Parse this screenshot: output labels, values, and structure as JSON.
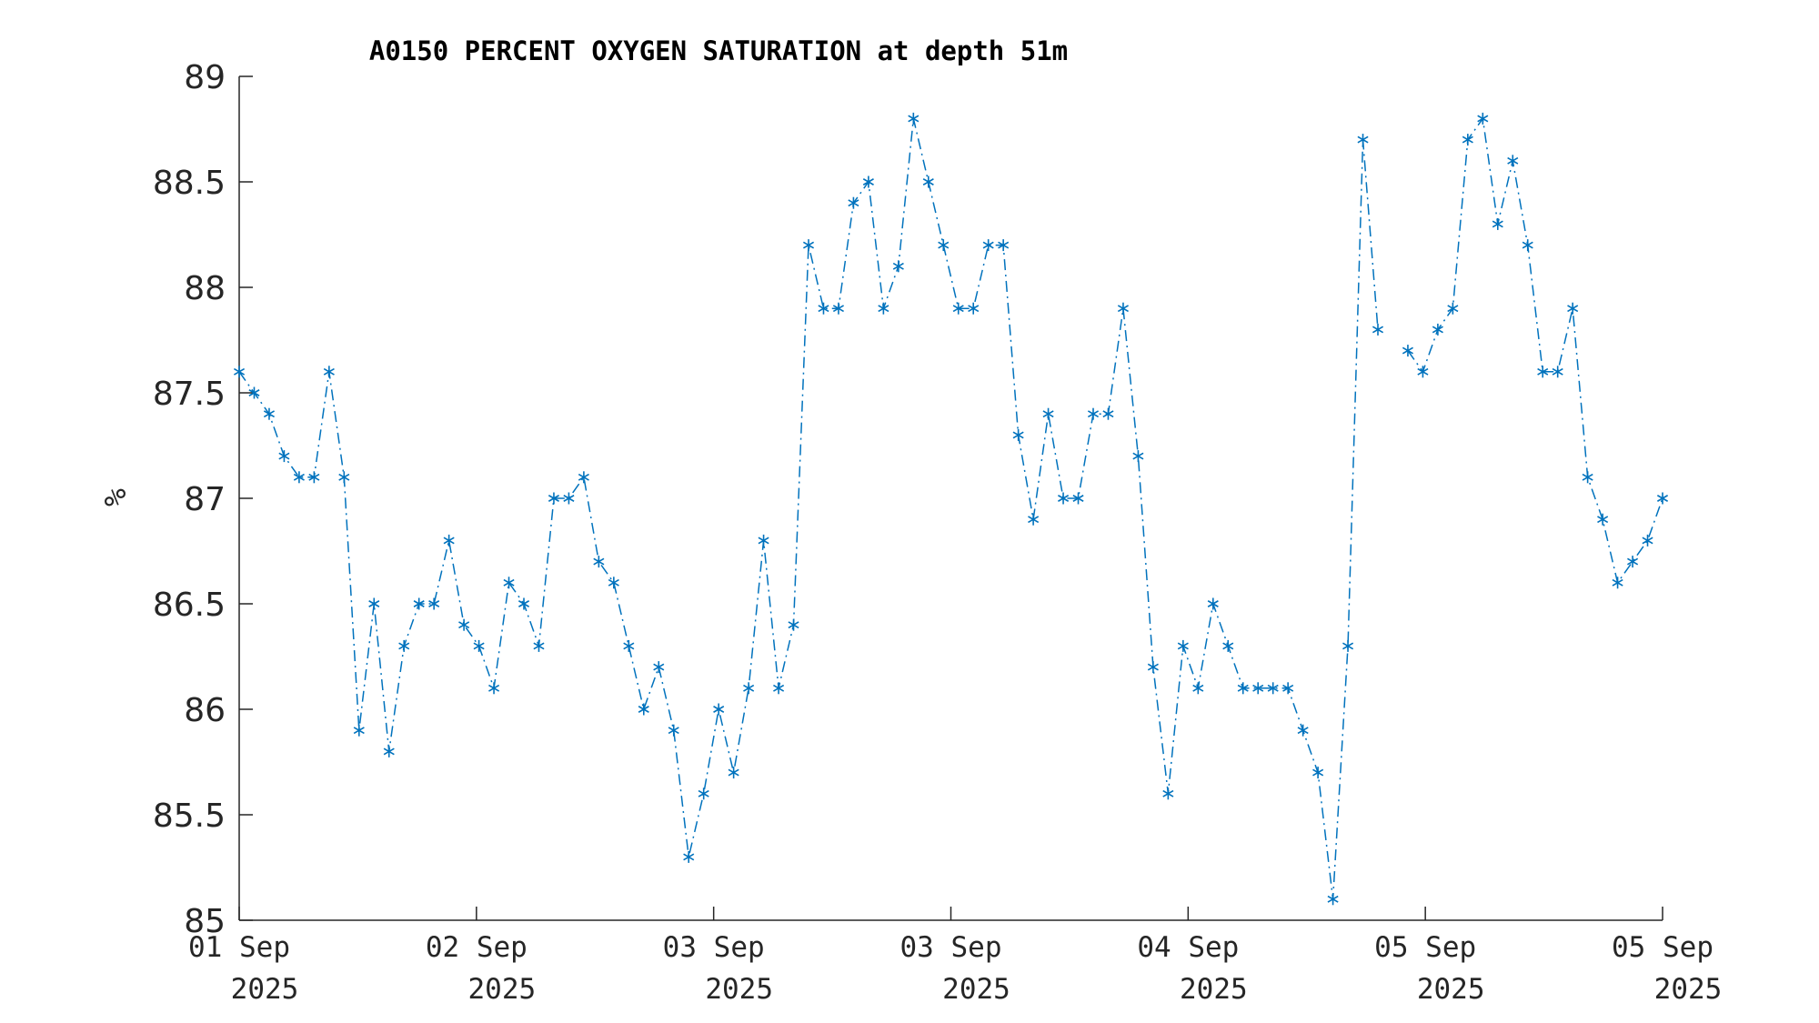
{
  "chart_data": {
    "type": "line",
    "title": "A0150 PERCENT OXYGEN SATURATION at depth 51m",
    "xlabel": "",
    "ylabel": "%",
    "ylim": [
      85,
      89
    ],
    "yticks": [
      "85",
      "85.5",
      "86",
      "86.5",
      "87",
      "87.5",
      "88",
      "88.5",
      "89"
    ],
    "xtick_labels": [
      [
        "01 Sep",
        "2025"
      ],
      [
        "02 Sep",
        "2025"
      ],
      [
        "03 Sep",
        "2025"
      ],
      [
        "03 Sep",
        "2025"
      ],
      [
        "04 Sep",
        "2025"
      ],
      [
        "05 Sep",
        "2025"
      ],
      [
        "05 Sep",
        "2025"
      ]
    ],
    "grid": false,
    "line_style": "dash-dot with asterisk markers",
    "color": "#0072BD",
    "series": [
      {
        "values": [
          87.6,
          87.5,
          87.4,
          87.2,
          87.1,
          87.1,
          87.6,
          87.1,
          85.9,
          86.5,
          85.8,
          86.3,
          86.5,
          86.5,
          86.8,
          86.4,
          86.3,
          86.1,
          86.6,
          86.5,
          86.3,
          87.0,
          87.0,
          87.1,
          86.7,
          86.6,
          86.3,
          86.0,
          86.2,
          85.9,
          85.3,
          85.6,
          86.0,
          85.7,
          86.1,
          86.8,
          86.1,
          86.4,
          88.2,
          87.9,
          87.9,
          88.4,
          88.5,
          87.9,
          88.1,
          88.8,
          88.5,
          88.2,
          87.9,
          87.9,
          88.2,
          88.2,
          87.3,
          86.9,
          87.4,
          87.0,
          87.0,
          87.4,
          87.4,
          87.9,
          87.2,
          86.2,
          85.6,
          86.3,
          86.1,
          86.5,
          86.3,
          86.1,
          86.1,
          86.1,
          86.1,
          85.9,
          85.7,
          85.1,
          86.3,
          88.7,
          87.8,
          null,
          87.7,
          87.6,
          87.8,
          87.9,
          88.7,
          88.8,
          88.3,
          88.6,
          88.2,
          87.6,
          87.6,
          87.9,
          87.1,
          86.9,
          86.6,
          86.7,
          86.8,
          87.0
        ]
      }
    ]
  }
}
